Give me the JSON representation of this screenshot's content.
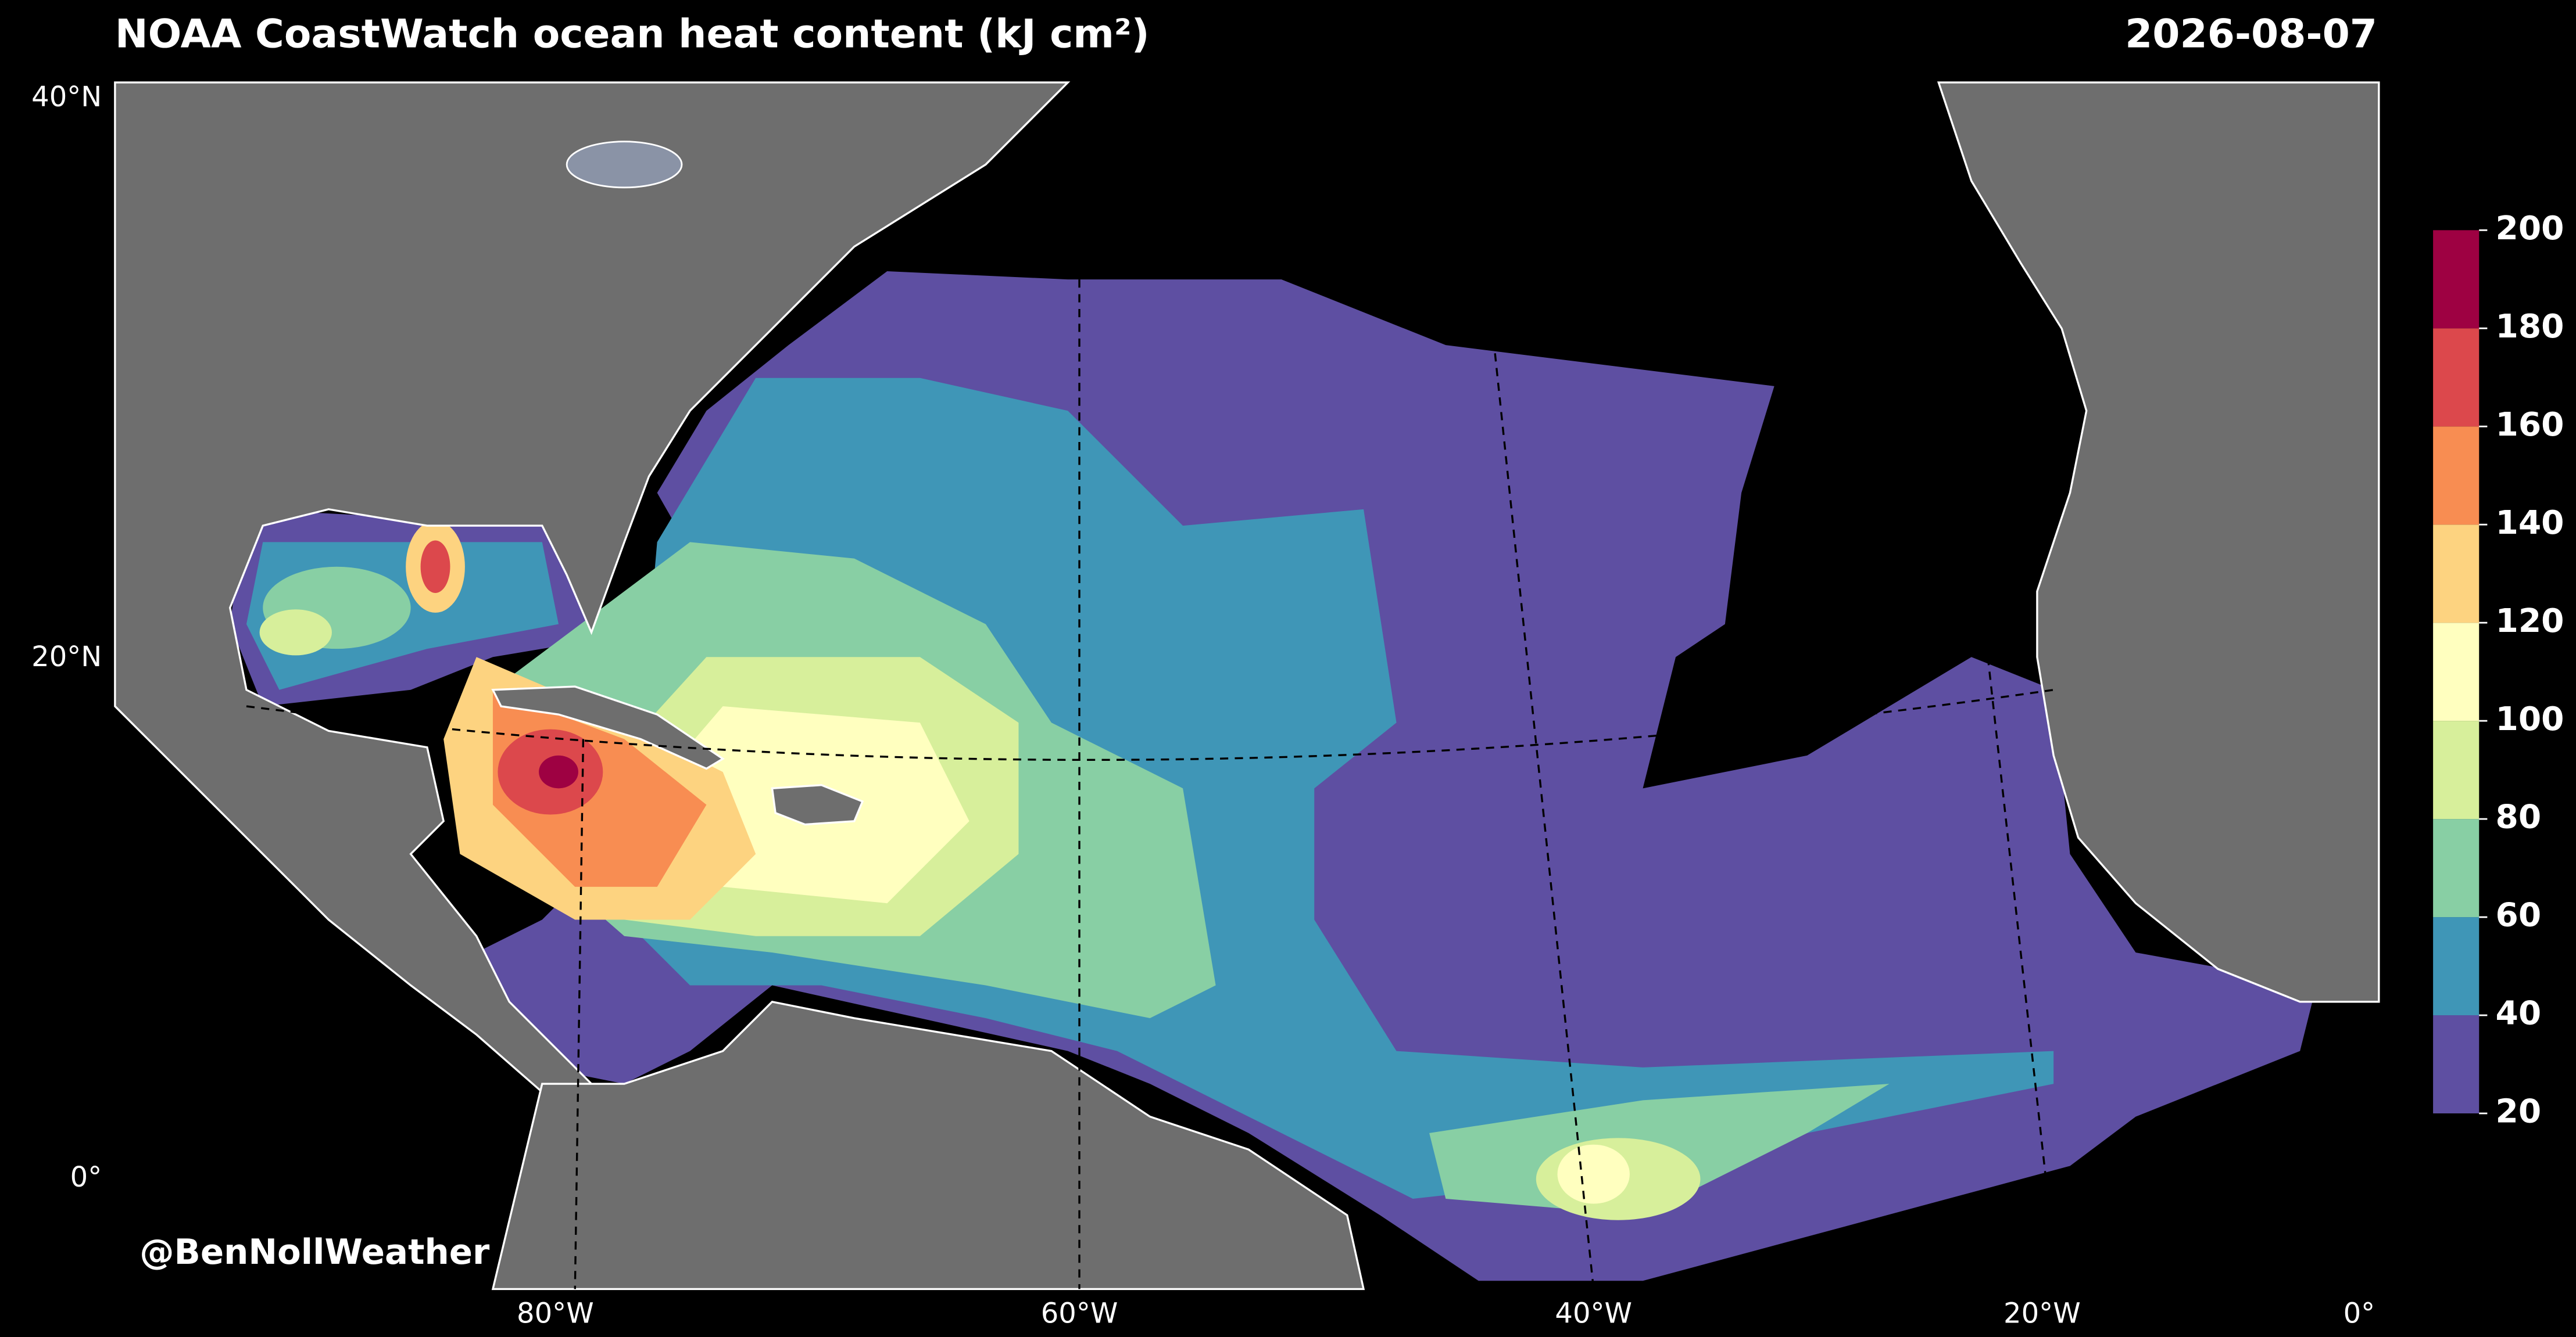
{
  "header": {
    "title": "NOAA CoastWatch ocean heat content (kJ cm²)",
    "date": "2026-08-07"
  },
  "map": {
    "lat_labels": [
      "40°N",
      "20°N",
      "0°"
    ],
    "lon_labels": [
      "80°W",
      "60°W",
      "40°W",
      "20°W",
      "0°"
    ],
    "credit": "@BenNollWeather"
  },
  "colorbar": {
    "ticks": [
      20,
      40,
      60,
      80,
      100,
      120,
      140,
      160,
      180,
      200
    ],
    "colors": [
      "#5e4fa2",
      "#3f96b7",
      "#88cfa4",
      "#d7ef9b",
      "#ffffbf",
      "#fdd380",
      "#f88d52",
      "#dc484c",
      "#9e0142"
    ]
  }
}
